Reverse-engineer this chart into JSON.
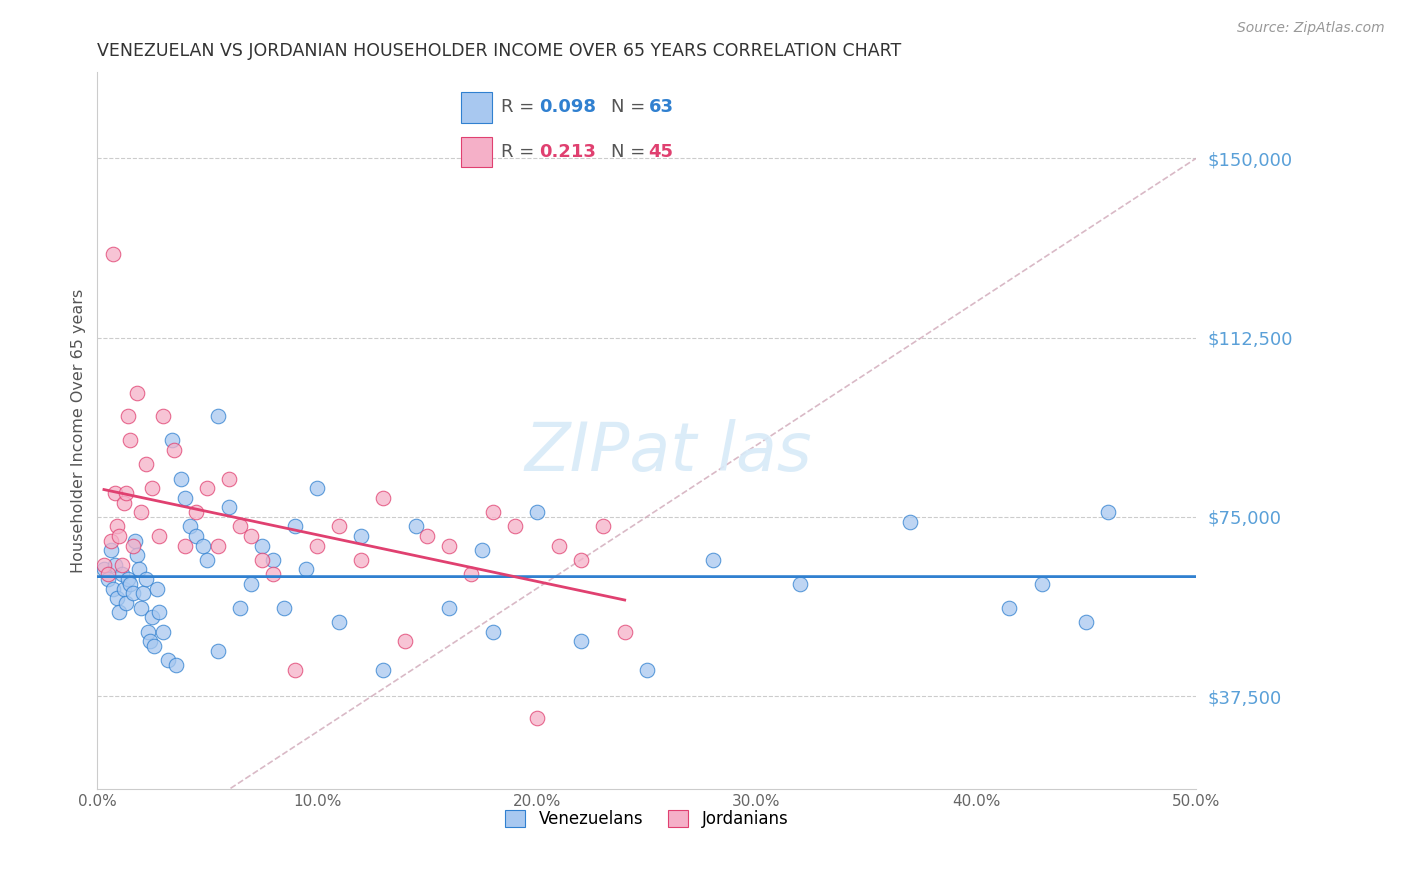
{
  "title": "VENEZUELAN VS JORDANIAN HOUSEHOLDER INCOME OVER 65 YEARS CORRELATION CHART",
  "source": "Source: ZipAtlas.com",
  "xlabel_venezuelans": "Venezuelans",
  "xlabel_jordanians": "Jordanians",
  "ylabel": "Householder Income Over 65 years",
  "xlim": [
    0.0,
    0.5
  ],
  "ylim": [
    18000,
    168000
  ],
  "yticks": [
    37500,
    75000,
    112500,
    150000
  ],
  "ytick_labels": [
    "$37,500",
    "$75,000",
    "$112,500",
    "$150,000"
  ],
  "xtick_labels": [
    "0.0%",
    "10.0%",
    "20.0%",
    "30.0%",
    "40.0%",
    "50.0%"
  ],
  "xticks": [
    0.0,
    0.1,
    0.2,
    0.3,
    0.4,
    0.5
  ],
  "legend_R_blue": "0.098",
  "legend_N_blue": "63",
  "legend_R_pink": "0.213",
  "legend_N_pink": "45",
  "blue_color": "#a8c8f0",
  "pink_color": "#f5b0c8",
  "line_blue_color": "#3080d0",
  "line_pink_color": "#e04070",
  "dashed_line_color": "#d0a8b8",
  "title_color": "#333333",
  "source_color": "#999999",
  "axis_label_color": "#555555",
  "tick_label_color_y": "#5aa0d8",
  "tick_label_color_x": "#666666",
  "background_color": "#ffffff",
  "venezuelan_x": [
    0.003,
    0.005,
    0.006,
    0.007,
    0.008,
    0.009,
    0.01,
    0.011,
    0.012,
    0.013,
    0.014,
    0.015,
    0.016,
    0.017,
    0.018,
    0.019,
    0.02,
    0.021,
    0.022,
    0.023,
    0.024,
    0.025,
    0.026,
    0.027,
    0.028,
    0.03,
    0.032,
    0.034,
    0.036,
    0.038,
    0.04,
    0.042,
    0.045,
    0.048,
    0.05,
    0.055,
    0.06,
    0.065,
    0.07,
    0.075,
    0.08,
    0.085,
    0.09,
    0.1,
    0.11,
    0.12,
    0.13,
    0.145,
    0.16,
    0.18,
    0.2,
    0.22,
    0.25,
    0.28,
    0.32,
    0.37,
    0.415,
    0.43,
    0.45,
    0.46,
    0.175,
    0.095,
    0.055
  ],
  "venezuelan_y": [
    64000,
    62000,
    68000,
    60000,
    65000,
    58000,
    55000,
    63000,
    60000,
    57000,
    62000,
    61000,
    59000,
    70000,
    67000,
    64000,
    56000,
    59000,
    62000,
    51000,
    49000,
    54000,
    48000,
    60000,
    55000,
    51000,
    45000,
    91000,
    44000,
    83000,
    79000,
    73000,
    71000,
    69000,
    66000,
    96000,
    77000,
    56000,
    61000,
    69000,
    66000,
    56000,
    73000,
    81000,
    53000,
    71000,
    43000,
    73000,
    56000,
    51000,
    76000,
    49000,
    43000,
    66000,
    61000,
    74000,
    56000,
    61000,
    53000,
    76000,
    68000,
    64000,
    47000
  ],
  "jordanian_x": [
    0.003,
    0.005,
    0.006,
    0.007,
    0.008,
    0.009,
    0.01,
    0.011,
    0.012,
    0.013,
    0.014,
    0.015,
    0.016,
    0.018,
    0.02,
    0.022,
    0.025,
    0.028,
    0.03,
    0.035,
    0.04,
    0.045,
    0.05,
    0.055,
    0.06,
    0.065,
    0.07,
    0.075,
    0.08,
    0.09,
    0.1,
    0.11,
    0.12,
    0.13,
    0.14,
    0.15,
    0.16,
    0.17,
    0.18,
    0.19,
    0.2,
    0.21,
    0.22,
    0.23,
    0.24
  ],
  "jordanian_y": [
    65000,
    63000,
    70000,
    130000,
    80000,
    73000,
    71000,
    65000,
    78000,
    80000,
    96000,
    91000,
    69000,
    101000,
    76000,
    86000,
    81000,
    71000,
    96000,
    89000,
    69000,
    76000,
    81000,
    69000,
    83000,
    73000,
    71000,
    66000,
    63000,
    43000,
    69000,
    73000,
    66000,
    79000,
    49000,
    71000,
    69000,
    63000,
    76000,
    73000,
    33000,
    69000,
    66000,
    73000,
    51000
  ]
}
